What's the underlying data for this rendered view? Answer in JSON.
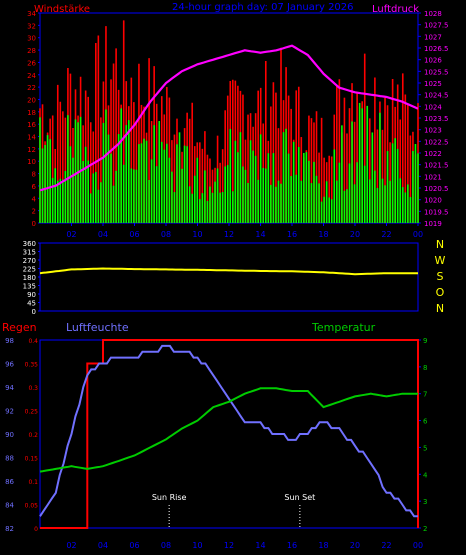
{
  "chart_data": [
    {
      "type": "bar",
      "title": "24-hour graph day: 07 January 2026",
      "left_label": "Windstärke",
      "right_label": "Luftdruck",
      "y_ticks_left": [
        0,
        2,
        4,
        6,
        8,
        10,
        12,
        14,
        16,
        18,
        20,
        22,
        24,
        26,
        28,
        30,
        32,
        34
      ],
      "y_ticks_right": [
        "1019",
        "1019.5",
        "1020",
        "1020.5",
        "1021",
        "1021.5",
        "1022",
        "1022.5",
        "1023",
        "1023.5",
        "1024",
        "1024.5",
        "1025",
        "1025.5",
        "1026",
        "1026.5",
        "1027",
        "1027.5",
        "1028"
      ],
      "x_ticks": [
        "02",
        "04",
        "06",
        "08",
        "10",
        "12",
        "14",
        "16",
        "18",
        "20",
        "22",
        "00"
      ],
      "ylim_left": [
        0,
        34
      ],
      "ylim_right": [
        1019,
        1028
      ],
      "colors": {
        "gust": "#ff0000",
        "wind": "#00ff00",
        "pressure": "#ff00ff",
        "axis": "#0000ff"
      },
      "x": [
        0,
        1,
        2,
        3,
        4,
        5,
        6,
        7,
        8,
        9,
        10,
        11,
        12,
        13,
        14,
        15,
        16,
        17,
        18,
        19,
        20,
        21,
        22,
        23,
        24
      ],
      "series": [
        {
          "values": [
            14,
            12,
            15,
            13,
            16,
            17,
            15,
            14,
            13,
            12,
            9,
            6,
            12,
            15,
            13,
            14,
            12,
            10,
            8,
            12,
            16,
            15,
            14,
            12,
            10
          ]
        },
        {
          "values": [
            22,
            20,
            26,
            24,
            28,
            30,
            26,
            24,
            22,
            20,
            16,
            12,
            20,
            24,
            22,
            26,
            22,
            18,
            16,
            22,
            28,
            26,
            24,
            22,
            18
          ]
        },
        {
          "values": [
            1020.4,
            1020.6,
            1021.0,
            1021.4,
            1021.8,
            1022.4,
            1023.2,
            1024.2,
            1025.0,
            1025.5,
            1025.8,
            1026.0,
            1026.2,
            1026.4,
            1026.3,
            1026.4,
            1026.6,
            1026.2,
            1025.4,
            1024.8,
            1024.6,
            1024.5,
            1024.4,
            1024.2,
            1023.9
          ]
        }
      ]
    },
    {
      "type": "line",
      "y_ticks": [
        0,
        45,
        90,
        135,
        180,
        225,
        270,
        315,
        360
      ],
      "right_labels": [
        "N",
        "W",
        "S",
        "O",
        "N"
      ],
      "ylim": [
        0,
        360
      ],
      "colors": {
        "direction": "#ffff00",
        "axis": "#0000ff"
      },
      "x": [
        0,
        2,
        4,
        6,
        8,
        10,
        12,
        14,
        16,
        18,
        20,
        22,
        24
      ],
      "series": [
        {
          "values": [
            200,
            220,
            225,
            222,
            220,
            218,
            215,
            212,
            210,
            205,
            195,
            200,
            200
          ]
        }
      ]
    },
    {
      "type": "line",
      "regen_label": "Regen",
      "humidity_label": "Luftfeuchte",
      "temperature_label": "Temperatur",
      "regen_ticks": [
        "0",
        "0.05",
        "0.1",
        "0.15",
        "0.2",
        "0.25",
        "0.3",
        "0.35",
        "0.4"
      ],
      "humidity_ticks": [
        82,
        84,
        86,
        88,
        90,
        92,
        94,
        96,
        98
      ],
      "temperature_ticks": [
        2,
        3,
        4,
        5,
        6,
        7,
        8,
        9
      ],
      "x_ticks": [
        "02",
        "04",
        "06",
        "08",
        "10",
        "12",
        "14",
        "16",
        "18",
        "20",
        "22",
        "00"
      ],
      "annotations": [
        "Sun Rise",
        "Sun Set"
      ],
      "annotation_x": [
        8.2,
        16.5
      ],
      "regen_ylim": [
        0,
        0.4
      ],
      "humidity_ylim": [
        82,
        98
      ],
      "temperature_ylim": [
        2,
        9
      ],
      "colors": {
        "regen": "#ff0000",
        "humidity": "#7070ff",
        "temperature": "#00cc00",
        "axis": "#0000ff"
      },
      "x": [
        0,
        1,
        2,
        3,
        4,
        5,
        6,
        7,
        8,
        9,
        10,
        11,
        12,
        13,
        14,
        15,
        16,
        17,
        18,
        19,
        20,
        21,
        22,
        23,
        24
      ],
      "series": [
        {
          "values": [
            0,
            0,
            0,
            0.35,
            0.4,
            0.4,
            0.4,
            0.4,
            0.4,
            0.4,
            0.4,
            0.4,
            0.4,
            0.4,
            0.4,
            0.4,
            0.4,
            0.4,
            0.4,
            0.4,
            0.4,
            0.4,
            0.4,
            0.4,
            0
          ]
        },
        {
          "values": [
            83,
            85,
            90,
            95,
            96,
            96.5,
            96.6,
            97,
            97.4,
            97,
            96.6,
            95,
            93,
            91,
            90.8,
            90,
            89.6,
            90,
            91,
            90.4,
            89,
            87.5,
            85,
            84,
            82.8
          ]
        },
        {
          "values": [
            4.1,
            4.2,
            4.3,
            4.2,
            4.3,
            4.5,
            4.7,
            5.0,
            5.3,
            5.7,
            6.0,
            6.5,
            6.7,
            7.0,
            7.2,
            7.2,
            7.1,
            7.1,
            6.5,
            6.7,
            6.9,
            7.0,
            6.9,
            7.0,
            7.0
          ]
        }
      ]
    }
  ]
}
